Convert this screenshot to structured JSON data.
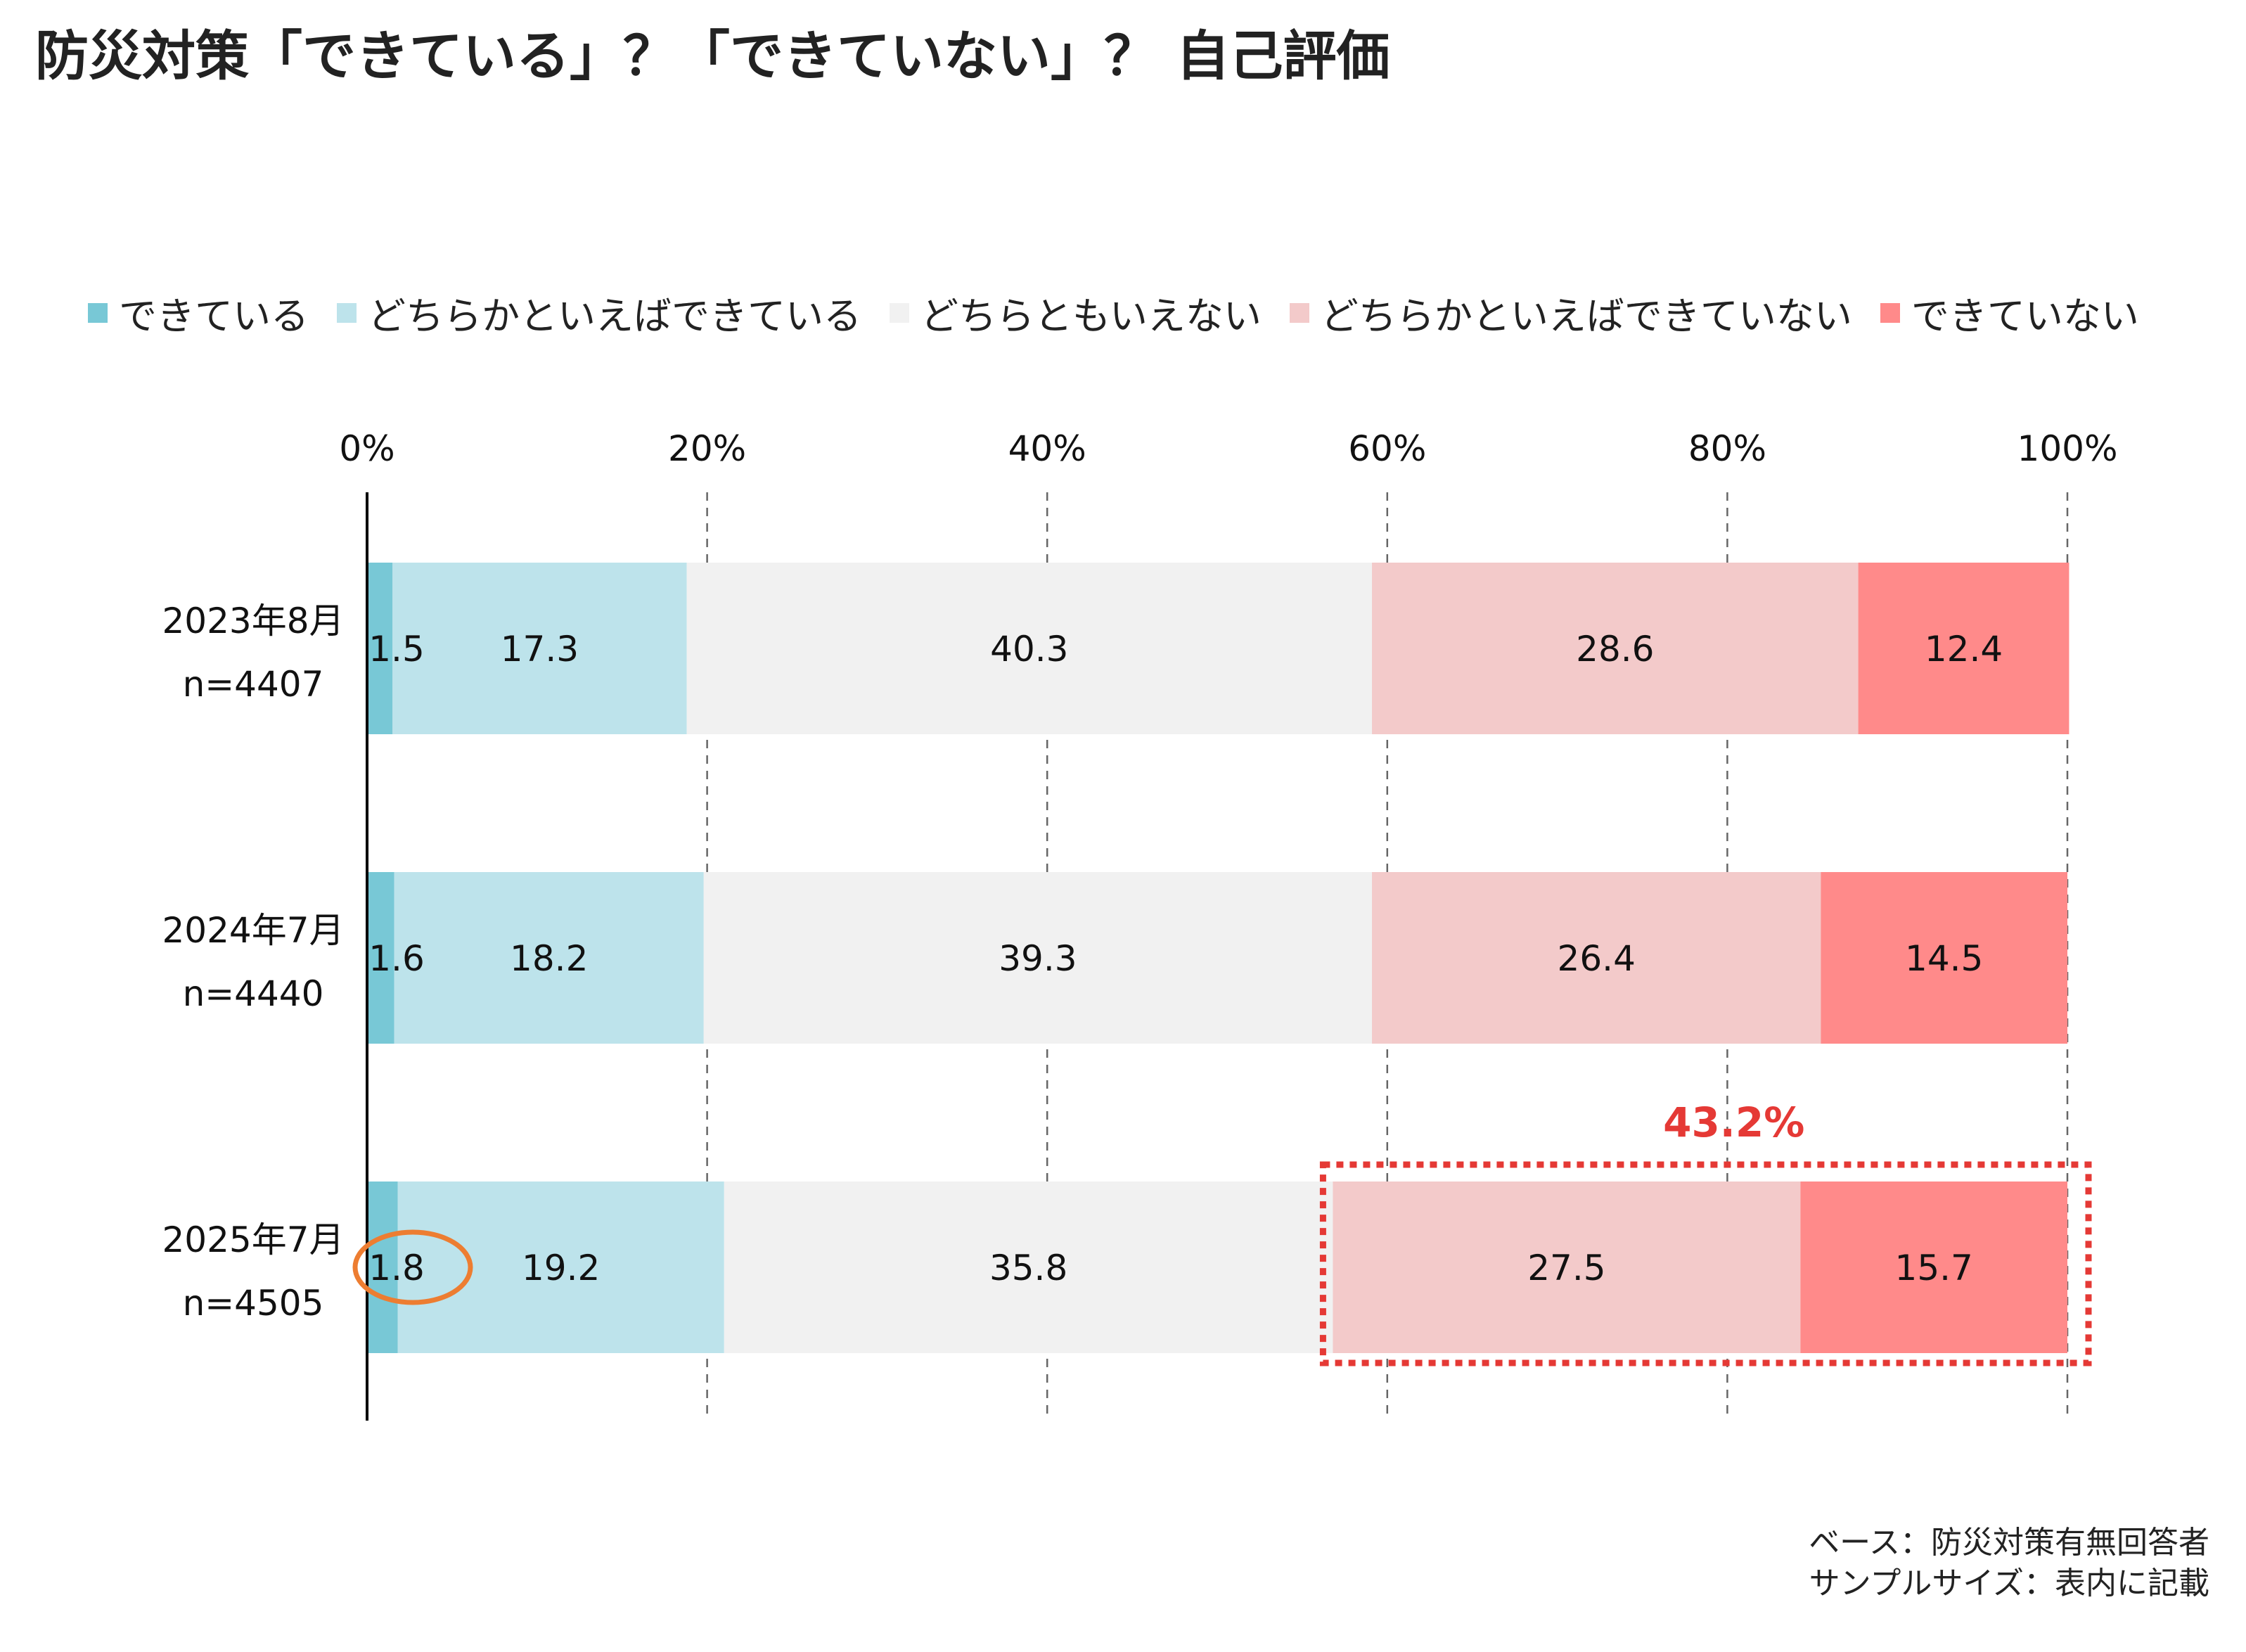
{
  "title": "防災対策「できている」？「できていない」？ 自己評価",
  "footnote": {
    "line1": "ベース：防災対策有無回答者",
    "line2": "サンプルサイズ：表内に記載"
  },
  "colors": {
    "series": [
      "#78C8D6",
      "#BDE3EB",
      "#F1F1F1",
      "#F3CACA",
      "#FF8A8A"
    ],
    "highlight": "#E53935",
    "circle": "#ED7D31"
  },
  "chart_data": {
    "type": "bar",
    "orientation": "horizontal",
    "stacked": true,
    "xlim": [
      0,
      100
    ],
    "x_ticks": [
      "0%",
      "20%",
      "40%",
      "60%",
      "80%",
      "100%"
    ],
    "grid": "vertical dashed",
    "legend_position": "top",
    "categories": [
      {
        "period": "2023年8月",
        "n": "n=4407"
      },
      {
        "period": "2024年7月",
        "n": "n=4440"
      },
      {
        "period": "2025年7月",
        "n": "n=4505"
      }
    ],
    "series": [
      {
        "name": "できている",
        "values": [
          1.5,
          1.6,
          1.8
        ]
      },
      {
        "name": "どちらかといえばできている",
        "values": [
          17.3,
          18.2,
          19.2
        ]
      },
      {
        "name": "どちらともいえない",
        "values": [
          40.3,
          39.3,
          35.8
        ]
      },
      {
        "name": "どちらかといえばできていない",
        "values": [
          28.6,
          26.4,
          27.5
        ]
      },
      {
        "name": "できていない",
        "values": [
          12.4,
          14.5,
          15.7
        ]
      }
    ],
    "annotations": {
      "highlight_total": "43.2%"
    }
  }
}
